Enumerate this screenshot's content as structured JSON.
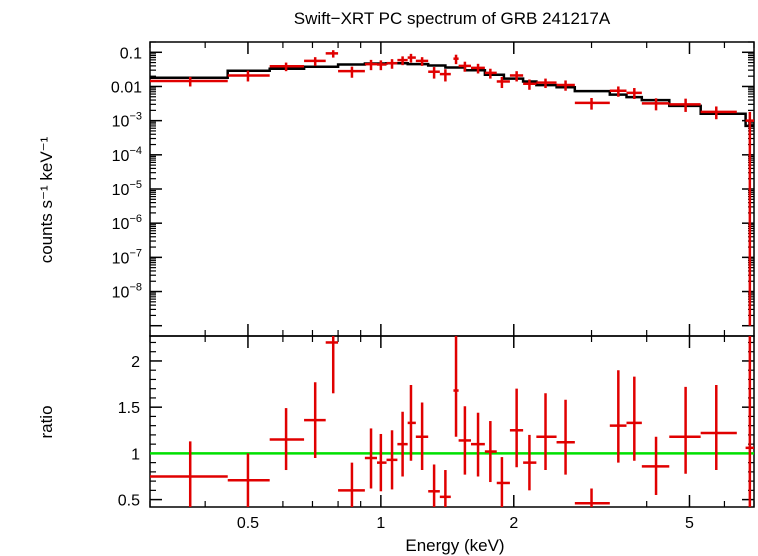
{
  "chart_data": {
    "type": "scatter",
    "title": "Swift−XRT PC spectrum of GRB 241217A",
    "colors": {
      "data": "#e00000",
      "model": "#000000",
      "unity": "#00e000",
      "axes": "#000000"
    },
    "x_axis": {
      "label": "Energy (keV)",
      "scale": "log",
      "range": [
        0.3,
        7.0
      ],
      "major_ticks": [
        {
          "value": 0.5,
          "label": "0.5"
        },
        {
          "value": 1,
          "label": "1"
        },
        {
          "value": 2,
          "label": "2"
        },
        {
          "value": 5,
          "label": "5"
        }
      ]
    },
    "top_panel": {
      "ylabel": "counts s⁻¹ keV⁻¹",
      "yscale": "log",
      "ylim": [
        5e-10,
        0.2
      ],
      "y_ticks": [
        {
          "value": 0.1,
          "label": "0.1"
        },
        {
          "value": 0.01,
          "label": "0.01"
        },
        {
          "value": 0.001,
          "base": "10",
          "exp": "−3"
        },
        {
          "value": 0.0001,
          "base": "10",
          "exp": "−4"
        },
        {
          "value": 1e-05,
          "base": "10",
          "exp": "−5"
        },
        {
          "value": 1e-06,
          "base": "10",
          "exp": "−6"
        },
        {
          "value": 1e-07,
          "base": "10",
          "exp": "−7"
        },
        {
          "value": 1e-08,
          "base": "10",
          "exp": "−8"
        }
      ],
      "series": [
        {
          "kind": "data",
          "points": [
            {
              "x": 0.37,
              "xlo": 0.3,
              "xhi": 0.45,
              "y": 0.0145,
              "ylo": 0.01,
              "yhi": 0.019
            },
            {
              "x": 0.5,
              "xlo": 0.45,
              "xhi": 0.56,
              "y": 0.021,
              "ylo": 0.014,
              "yhi": 0.029
            },
            {
              "x": 0.61,
              "xlo": 0.56,
              "xhi": 0.67,
              "y": 0.039,
              "ylo": 0.028,
              "yhi": 0.05
            },
            {
              "x": 0.71,
              "xlo": 0.67,
              "xhi": 0.75,
              "y": 0.056,
              "ylo": 0.04,
              "yhi": 0.072
            },
            {
              "x": 0.78,
              "xlo": 0.75,
              "xhi": 0.8,
              "y": 0.093,
              "ylo": 0.07,
              "yhi": 0.115
            },
            {
              "x": 0.86,
              "xlo": 0.8,
              "xhi": 0.92,
              "y": 0.028,
              "ylo": 0.018,
              "yhi": 0.038
            },
            {
              "x": 0.95,
              "xlo": 0.92,
              "xhi": 0.98,
              "y": 0.045,
              "ylo": 0.03,
              "yhi": 0.06
            },
            {
              "x": 1.0,
              "xlo": 0.98,
              "xhi": 1.03,
              "y": 0.044,
              "ylo": 0.03,
              "yhi": 0.058
            },
            {
              "x": 1.06,
              "xlo": 1.03,
              "xhi": 1.09,
              "y": 0.048,
              "ylo": 0.033,
              "yhi": 0.063
            },
            {
              "x": 1.12,
              "xlo": 1.09,
              "xhi": 1.15,
              "y": 0.059,
              "ylo": 0.042,
              "yhi": 0.076
            },
            {
              "x": 1.17,
              "xlo": 1.15,
              "xhi": 1.2,
              "y": 0.07,
              "ylo": 0.05,
              "yhi": 0.09
            },
            {
              "x": 1.24,
              "xlo": 1.2,
              "xhi": 1.28,
              "y": 0.056,
              "ylo": 0.04,
              "yhi": 0.072
            },
            {
              "x": 1.32,
              "xlo": 1.28,
              "xhi": 1.36,
              "y": 0.027,
              "ylo": 0.017,
              "yhi": 0.037
            },
            {
              "x": 1.4,
              "xlo": 1.36,
              "xhi": 1.44,
              "y": 0.023,
              "ylo": 0.014,
              "yhi": 0.032
            },
            {
              "x": 1.48,
              "xlo": 1.46,
              "xhi": 1.5,
              "y": 0.065,
              "ylo": 0.045,
              "yhi": 0.085
            },
            {
              "x": 1.55,
              "xlo": 1.5,
              "xhi": 1.6,
              "y": 0.04,
              "ylo": 0.027,
              "yhi": 0.053
            },
            {
              "x": 1.66,
              "xlo": 1.6,
              "xhi": 1.72,
              "y": 0.035,
              "ylo": 0.024,
              "yhi": 0.046
            },
            {
              "x": 1.77,
              "xlo": 1.72,
              "xhi": 1.83,
              "y": 0.025,
              "ylo": 0.017,
              "yhi": 0.033
            },
            {
              "x": 1.88,
              "xlo": 1.83,
              "xhi": 1.96,
              "y": 0.014,
              "ylo": 0.009,
              "yhi": 0.019
            },
            {
              "x": 2.03,
              "xlo": 1.96,
              "xhi": 2.1,
              "y": 0.021,
              "ylo": 0.014,
              "yhi": 0.028
            },
            {
              "x": 2.17,
              "xlo": 2.1,
              "xhi": 2.25,
              "y": 0.012,
              "ylo": 0.008,
              "yhi": 0.016
            },
            {
              "x": 2.36,
              "xlo": 2.25,
              "xhi": 2.5,
              "y": 0.013,
              "ylo": 0.009,
              "yhi": 0.017
            },
            {
              "x": 2.62,
              "xlo": 2.5,
              "xhi": 2.75,
              "y": 0.011,
              "ylo": 0.0075,
              "yhi": 0.015
            },
            {
              "x": 3.0,
              "xlo": 2.75,
              "xhi": 3.3,
              "y": 0.0033,
              "ylo": 0.0021,
              "yhi": 0.0046
            },
            {
              "x": 3.45,
              "xlo": 3.3,
              "xhi": 3.6,
              "y": 0.0075,
              "ylo": 0.005,
              "yhi": 0.01
            },
            {
              "x": 3.75,
              "xlo": 3.6,
              "xhi": 3.9,
              "y": 0.0065,
              "ylo": 0.0043,
              "yhi": 0.009
            },
            {
              "x": 4.2,
              "xlo": 3.9,
              "xhi": 4.5,
              "y": 0.0032,
              "ylo": 0.002,
              "yhi": 0.0045
            },
            {
              "x": 4.9,
              "xlo": 4.5,
              "xhi": 5.3,
              "y": 0.003,
              "ylo": 0.0018,
              "yhi": 0.0044
            },
            {
              "x": 5.75,
              "xlo": 5.3,
              "xhi": 6.4,
              "y": 0.0018,
              "ylo": 0.0011,
              "yhi": 0.0026
            },
            {
              "x": 6.85,
              "xlo": 6.7,
              "xhi": 7.0,
              "y": 0.001,
              "ylo": 1e-09,
              "yhi": 0.0018
            }
          ]
        },
        {
          "kind": "model",
          "steps": [
            {
              "xlo": 0.3,
              "xhi": 0.45,
              "y": 0.018
            },
            {
              "xlo": 0.45,
              "xhi": 0.56,
              "y": 0.029
            },
            {
              "xlo": 0.56,
              "xhi": 0.67,
              "y": 0.033
            },
            {
              "xlo": 0.67,
              "xhi": 0.8,
              "y": 0.038
            },
            {
              "xlo": 0.8,
              "xhi": 0.92,
              "y": 0.044
            },
            {
              "xlo": 0.92,
              "xhi": 1.03,
              "y": 0.047
            },
            {
              "xlo": 1.03,
              "xhi": 1.15,
              "y": 0.048
            },
            {
              "xlo": 1.15,
              "xhi": 1.28,
              "y": 0.045
            },
            {
              "xlo": 1.28,
              "xhi": 1.4,
              "y": 0.041
            },
            {
              "xlo": 1.4,
              "xhi": 1.55,
              "y": 0.036
            },
            {
              "xlo": 1.55,
              "xhi": 1.72,
              "y": 0.03
            },
            {
              "xlo": 1.72,
              "xhi": 1.9,
              "y": 0.022
            },
            {
              "xlo": 1.9,
              "xhi": 2.1,
              "y": 0.017
            },
            {
              "xlo": 2.1,
              "xhi": 2.25,
              "y": 0.014
            },
            {
              "xlo": 2.25,
              "xhi": 2.5,
              "y": 0.011
            },
            {
              "xlo": 2.5,
              "xhi": 2.75,
              "y": 0.0095
            },
            {
              "xlo": 2.75,
              "xhi": 3.3,
              "y": 0.0073
            },
            {
              "xlo": 3.3,
              "xhi": 3.6,
              "y": 0.0058
            },
            {
              "xlo": 3.6,
              "xhi": 3.9,
              "y": 0.0049
            },
            {
              "xlo": 3.9,
              "xhi": 4.5,
              "y": 0.004
            },
            {
              "xlo": 4.5,
              "xhi": 5.3,
              "y": 0.0027
            },
            {
              "xlo": 5.3,
              "xhi": 6.7,
              "y": 0.0016
            },
            {
              "xlo": 6.7,
              "xhi": 7.0,
              "y": 0.0007
            }
          ]
        }
      ]
    },
    "bottom_panel": {
      "ylabel": "ratio",
      "yscale": "linear",
      "ylim": [
        0.42,
        2.27
      ],
      "y_ticks": [
        {
          "value": 0.5,
          "label": "0.5"
        },
        {
          "value": 1,
          "label": "1"
        },
        {
          "value": 1.5,
          "label": "1.5"
        },
        {
          "value": 2,
          "label": "2"
        }
      ],
      "reference_line": 1,
      "points": [
        {
          "x": 0.37,
          "xlo": 0.3,
          "xhi": 0.45,
          "y": 0.75,
          "ylo": 0.37,
          "yhi": 1.13
        },
        {
          "x": 0.5,
          "xlo": 0.45,
          "xhi": 0.56,
          "y": 0.71,
          "ylo": 0.42,
          "yhi": 1.0
        },
        {
          "x": 0.61,
          "xlo": 0.56,
          "xhi": 0.67,
          "y": 1.15,
          "ylo": 0.82,
          "yhi": 1.49
        },
        {
          "x": 0.71,
          "xlo": 0.67,
          "xhi": 0.75,
          "y": 1.36,
          "ylo": 0.95,
          "yhi": 1.77
        },
        {
          "x": 0.78,
          "xlo": 0.75,
          "xhi": 0.8,
          "y": 2.2,
          "ylo": 1.65,
          "yhi": 2.5
        },
        {
          "x": 0.86,
          "xlo": 0.8,
          "xhi": 0.92,
          "y": 0.6,
          "ylo": 0.42,
          "yhi": 0.9
        },
        {
          "x": 0.95,
          "xlo": 0.92,
          "xhi": 0.98,
          "y": 0.95,
          "ylo": 0.62,
          "yhi": 1.27
        },
        {
          "x": 1.0,
          "xlo": 0.98,
          "xhi": 1.03,
          "y": 0.9,
          "ylo": 0.59,
          "yhi": 1.21
        },
        {
          "x": 1.06,
          "xlo": 1.03,
          "xhi": 1.09,
          "y": 0.93,
          "ylo": 0.61,
          "yhi": 1.25
        },
        {
          "x": 1.12,
          "xlo": 1.09,
          "xhi": 1.15,
          "y": 1.1,
          "ylo": 0.75,
          "yhi": 1.45
        },
        {
          "x": 1.17,
          "xlo": 1.15,
          "xhi": 1.2,
          "y": 1.33,
          "ylo": 0.92,
          "yhi": 1.74
        },
        {
          "x": 1.24,
          "xlo": 1.2,
          "xhi": 1.28,
          "y": 1.18,
          "ylo": 0.82,
          "yhi": 1.55
        },
        {
          "x": 1.32,
          "xlo": 1.28,
          "xhi": 1.36,
          "y": 0.59,
          "ylo": 0.42,
          "yhi": 0.88
        },
        {
          "x": 1.4,
          "xlo": 1.36,
          "xhi": 1.44,
          "y": 0.53,
          "ylo": 0.42,
          "yhi": 0.82
        },
        {
          "x": 1.48,
          "xlo": 1.46,
          "xhi": 1.5,
          "y": 1.68,
          "ylo": 1.18,
          "yhi": 2.3
        },
        {
          "x": 1.55,
          "xlo": 1.5,
          "xhi": 1.6,
          "y": 1.14,
          "ylo": 0.77,
          "yhi": 1.51
        },
        {
          "x": 1.66,
          "xlo": 1.6,
          "xhi": 1.72,
          "y": 1.1,
          "ylo": 0.75,
          "yhi": 1.44
        },
        {
          "x": 1.77,
          "xlo": 1.72,
          "xhi": 1.83,
          "y": 1.02,
          "ylo": 0.69,
          "yhi": 1.35
        },
        {
          "x": 1.88,
          "xlo": 1.83,
          "xhi": 1.96,
          "y": 0.68,
          "ylo": 0.42,
          "yhi": 0.96
        },
        {
          "x": 2.03,
          "xlo": 1.96,
          "xhi": 2.1,
          "y": 1.25,
          "ylo": 0.85,
          "yhi": 1.7
        },
        {
          "x": 2.17,
          "xlo": 2.1,
          "xhi": 2.25,
          "y": 0.9,
          "ylo": 0.6,
          "yhi": 1.2
        },
        {
          "x": 2.36,
          "xlo": 2.25,
          "xhi": 2.5,
          "y": 1.18,
          "ylo": 0.82,
          "yhi": 1.65
        },
        {
          "x": 2.62,
          "xlo": 2.5,
          "xhi": 2.75,
          "y": 1.12,
          "ylo": 0.77,
          "yhi": 1.58
        },
        {
          "x": 3.0,
          "xlo": 2.75,
          "xhi": 3.3,
          "y": 0.46,
          "ylo": 0.42,
          "yhi": 0.62
        },
        {
          "x": 3.45,
          "xlo": 3.3,
          "xhi": 3.6,
          "y": 1.3,
          "ylo": 0.9,
          "yhi": 1.9
        },
        {
          "x": 3.75,
          "xlo": 3.6,
          "xhi": 3.9,
          "y": 1.33,
          "ylo": 0.92,
          "yhi": 1.83
        },
        {
          "x": 4.2,
          "xlo": 3.9,
          "xhi": 4.5,
          "y": 0.86,
          "ylo": 0.55,
          "yhi": 1.18
        },
        {
          "x": 4.9,
          "xlo": 4.5,
          "xhi": 5.3,
          "y": 1.18,
          "ylo": 0.78,
          "yhi": 1.72
        },
        {
          "x": 5.75,
          "xlo": 5.3,
          "xhi": 6.4,
          "y": 1.22,
          "ylo": 0.82,
          "yhi": 1.74
        },
        {
          "x": 6.85,
          "xlo": 6.7,
          "xhi": 7.0,
          "y": 1.06,
          "ylo": 0.42,
          "yhi": 2.27
        }
      ]
    }
  }
}
